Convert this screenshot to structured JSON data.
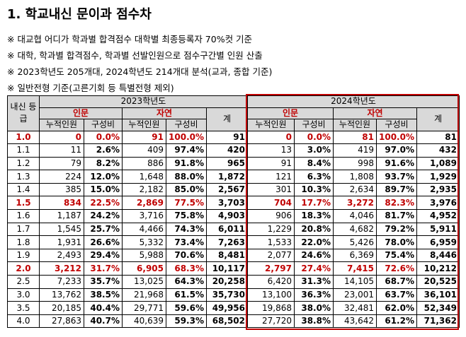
{
  "header": {
    "title": "1. 학교내신 문이과 점수차"
  },
  "notes": [
    "※ 대교협 어디가 학과별 합격점수 대학별 최종등록자 70%컷 기준",
    "※ 대학, 학과별 합격점수, 학과별 선발인원으로 점수구간별 인원 산출",
    "※ 2023학년도 205개대, 2024학년도 214개대 분석(교과, 종합 기준)",
    "※ 일반전형 기준(고른기회 등 특별전형 제외)"
  ],
  "table": {
    "grade_header": "내신 등급",
    "year_headers": [
      "2023학년도",
      "2024학년도"
    ],
    "group_headers": [
      "인문",
      "자연",
      "계"
    ],
    "sub_headers": [
      "누적인원",
      "구성비"
    ],
    "rows": [
      [
        "1.0",
        "0",
        "0.0%",
        "91",
        "100.0%",
        "91",
        "0",
        "0.0%",
        "81",
        "100.0%",
        "81"
      ],
      [
        "1.1",
        "11",
        "2.6%",
        "409",
        "97.4%",
        "420",
        "13",
        "3.0%",
        "419",
        "97.0%",
        "432"
      ],
      [
        "1.2",
        "79",
        "8.2%",
        "886",
        "91.8%",
        "965",
        "91",
        "8.4%",
        "998",
        "91.6%",
        "1,089"
      ],
      [
        "1.3",
        "224",
        "12.0%",
        "1,648",
        "88.0%",
        "1,872",
        "121",
        "6.3%",
        "1,808",
        "93.7%",
        "1,929"
      ],
      [
        "1.4",
        "385",
        "15.0%",
        "2,182",
        "85.0%",
        "2,567",
        "301",
        "10.3%",
        "2,634",
        "89.7%",
        "2,935"
      ],
      [
        "1.5",
        "834",
        "22.5%",
        "2,869",
        "77.5%",
        "3,703",
        "704",
        "17.7%",
        "3,272",
        "82.3%",
        "3,976"
      ],
      [
        "1.6",
        "1,187",
        "24.2%",
        "3,716",
        "75.8%",
        "4,903",
        "906",
        "18.3%",
        "4,046",
        "81.7%",
        "4,952"
      ],
      [
        "1.7",
        "1,545",
        "25.7%",
        "4,466",
        "74.3%",
        "6,011",
        "1,229",
        "20.8%",
        "4,682",
        "79.2%",
        "5,911"
      ],
      [
        "1.8",
        "1,931",
        "26.6%",
        "5,332",
        "73.4%",
        "7,263",
        "1,533",
        "22.0%",
        "5,426",
        "78.0%",
        "6,959"
      ],
      [
        "1.9",
        "2,493",
        "29.4%",
        "5,988",
        "70.6%",
        "8,481",
        "2,077",
        "24.6%",
        "6,369",
        "75.4%",
        "8,446"
      ],
      [
        "2.0",
        "3,212",
        "31.7%",
        "6,905",
        "68.3%",
        "10,117",
        "2,797",
        "27.4%",
        "7,415",
        "72.6%",
        "10,212"
      ],
      [
        "2.5",
        "7,233",
        "35.7%",
        "13,025",
        "64.3%",
        "20,258",
        "6,420",
        "31.3%",
        "14,105",
        "68.7%",
        "20,525"
      ],
      [
        "3.0",
        "13,762",
        "38.5%",
        "21,968",
        "61.5%",
        "35,730",
        "13,100",
        "36.3%",
        "23,001",
        "63.7%",
        "36,101"
      ],
      [
        "3.5",
        "20,185",
        "40.4%",
        "29,771",
        "59.6%",
        "49,956",
        "19,868",
        "38.0%",
        "32,481",
        "62.0%",
        "52,349"
      ],
      [
        "4.0",
        "27,863",
        "40.7%",
        "40,639",
        "59.3%",
        "68,502",
        "27,720",
        "38.8%",
        "43,642",
        "61.2%",
        "71,362"
      ]
    ]
  }
}
